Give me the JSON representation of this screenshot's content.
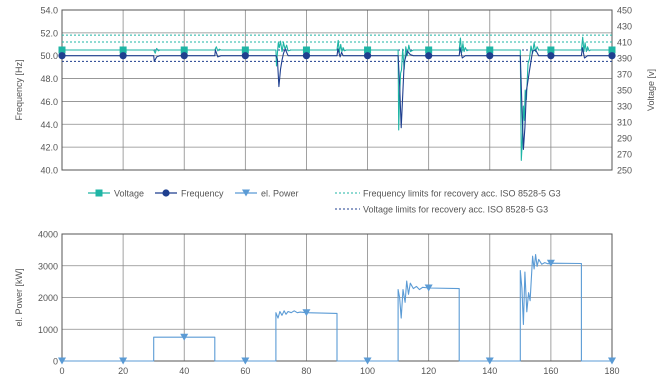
{
  "colors": {
    "voltage": "#1fb5a5",
    "frequency": "#1f3f8f",
    "power": "#5b9bd5",
    "grid": "#8a8a8a",
    "frame": "#555555",
    "text": "#555555"
  },
  "chart_data": [
    {
      "type": "line",
      "title": "",
      "xlim": [
        0,
        180
      ],
      "x_ticks": [
        0,
        20,
        40,
        60,
        80,
        100,
        120,
        140,
        160,
        180
      ],
      "ylabel": "Frequency [Hz]",
      "ylim": [
        40,
        54
      ],
      "y_ticks": [
        "40.0",
        "42.0",
        "44.0",
        "46.0",
        "48.0",
        "50.0",
        "52.0",
        "54.0"
      ],
      "y2label": "Voltage [v]",
      "y2lim": [
        250,
        450
      ],
      "y2_ticks": [
        250,
        270,
        290,
        310,
        330,
        350,
        370,
        390,
        410,
        430,
        450
      ],
      "grid": true,
      "legend_position": "bottom",
      "series": [
        {
          "name": "Voltage",
          "axis": "right",
          "marker": "square",
          "color": "#1fb5a5",
          "x": [
            0,
            30,
            30.5,
            31,
            31.5,
            32,
            50,
            50.5,
            51,
            51.5,
            52,
            70,
            70.2,
            70.5,
            70.8,
            71.1,
            71.5,
            72,
            72.5,
            73,
            73.5,
            74,
            75,
            90,
            90.4,
            90.8,
            91.2,
            91.6,
            92,
            92.5,
            93,
            110,
            110.2,
            110.5,
            110.8,
            111.1,
            111.5,
            112,
            112.5,
            113,
            113.5,
            114,
            115,
            130,
            130.4,
            130.8,
            131.2,
            131.6,
            132,
            132.5,
            133,
            150,
            150.3,
            150.6,
            151,
            151.3,
            151.6,
            152,
            152.5,
            153,
            153.5,
            154,
            154.5,
            155,
            155.5,
            156,
            157,
            170,
            170.4,
            170.8,
            171.2,
            171.6,
            172,
            172.5,
            173,
            180
          ],
          "y": [
            400,
            400,
            396,
            402,
            399,
            400,
            400,
            404,
            399,
            401,
            400,
            400,
            380,
            396,
            409,
            403,
            411,
            398,
            409,
            401,
            406,
            399,
            400,
            400,
            412,
            397,
            407,
            398,
            403,
            399,
            400,
            400,
            300,
            344,
            371,
            375,
            401,
            376,
            404,
            393,
            406,
            398,
            400,
            400,
            415,
            397,
            408,
            398,
            403,
            399,
            400,
            400,
            262,
            283,
            330,
            312,
            350,
            338,
            383,
            389,
            405,
            396,
            409,
            398,
            404,
            400,
            400,
            400,
            416,
            398,
            409,
            398,
            404,
            399,
            400,
            400
          ],
          "marker_x": [
            0,
            20,
            40,
            60,
            80,
            100,
            120,
            140,
            160,
            180
          ]
        },
        {
          "name": "Frequency",
          "axis": "left",
          "marker": "circle",
          "color": "#1f3f8f",
          "x": [
            0,
            30,
            30.2,
            31,
            32,
            50,
            50.2,
            51,
            52,
            70,
            70.5,
            71,
            71.5,
            72,
            72.5,
            73,
            74,
            90,
            90.3,
            91,
            91.5,
            92,
            110,
            110.5,
            111,
            111.5,
            112,
            113,
            114,
            115,
            130,
            130.3,
            131,
            132,
            150,
            150.5,
            151,
            151.5,
            152,
            153,
            154,
            155,
            156,
            170,
            170.3,
            171,
            172,
            180
          ],
          "y": [
            50,
            50,
            49.5,
            49.9,
            50,
            50,
            50.5,
            49.9,
            50,
            50,
            49.7,
            47.3,
            48.8,
            49.6,
            50.2,
            50.6,
            50,
            50,
            50.6,
            49.9,
            50.3,
            50,
            50,
            47.5,
            43.7,
            46.5,
            49.4,
            50.4,
            50.1,
            50,
            50,
            50.7,
            49.8,
            50,
            50,
            45.6,
            41.8,
            43.7,
            46.9,
            48.7,
            50.4,
            50.5,
            50,
            50,
            50.7,
            49.8,
            50,
            50
          ],
          "marker_x": [
            0,
            20,
            40,
            60,
            80,
            100,
            120,
            140,
            160,
            180
          ]
        },
        {
          "name": "Frequency limits for recovery acc. ISO 8528-5 G3",
          "axis": "left",
          "style": "dashed",
          "color": "#1fb5a5",
          "values": [
            51.8,
            51.2
          ]
        },
        {
          "name": "Voltage limits for recovery acc. ISO 8528-5 G3",
          "axis": "left",
          "style": "dashed",
          "color": "#1f3f8f",
          "values": [
            50.5,
            49.5
          ]
        }
      ]
    },
    {
      "type": "line",
      "title": "",
      "xlim": [
        0,
        180
      ],
      "x_ticks": [
        0,
        20,
        40,
        60,
        80,
        100,
        120,
        140,
        160,
        180
      ],
      "ylabel": "el. Power [kW]",
      "ylim": [
        0,
        4000
      ],
      "y_ticks": [
        0,
        1000,
        2000,
        3000,
        4000
      ],
      "grid": true,
      "series": [
        {
          "name": "el. Power",
          "marker": "triangle-down",
          "color": "#5b9bd5",
          "x": [
            0,
            30,
            30,
            50,
            50,
            70,
            70,
            70.7,
            71.3,
            72,
            72.7,
            73.3,
            74,
            75,
            76,
            77,
            78,
            80,
            90,
            90,
            110,
            110,
            110.5,
            111,
            111.6,
            112.3,
            112.8,
            113.4,
            114,
            115,
            116,
            117,
            118,
            120,
            130,
            130,
            150,
            150,
            150.5,
            151,
            151.5,
            152.1,
            152.7,
            153.2,
            154,
            154.5,
            155,
            155.5,
            156,
            157,
            158,
            159,
            160,
            170,
            170,
            180
          ],
          "y": [
            0,
            0,
            750,
            750,
            0,
            0,
            1520,
            1350,
            1560,
            1440,
            1580,
            1470,
            1560,
            1520,
            1580,
            1520,
            1540,
            1520,
            1500,
            0,
            0,
            2250,
            2000,
            1350,
            2250,
            1850,
            2520,
            2100,
            2450,
            2280,
            2350,
            2250,
            2320,
            2300,
            2280,
            0,
            0,
            2850,
            2300,
            1150,
            2800,
            1550,
            2150,
            1900,
            3300,
            2900,
            3350,
            2980,
            3200,
            3050,
            3100,
            3060,
            3080,
            3070,
            0,
            0
          ],
          "marker_x": [
            0,
            20,
            40,
            60,
            80,
            100,
            120,
            140,
            160,
            180
          ]
        }
      ]
    }
  ]
}
